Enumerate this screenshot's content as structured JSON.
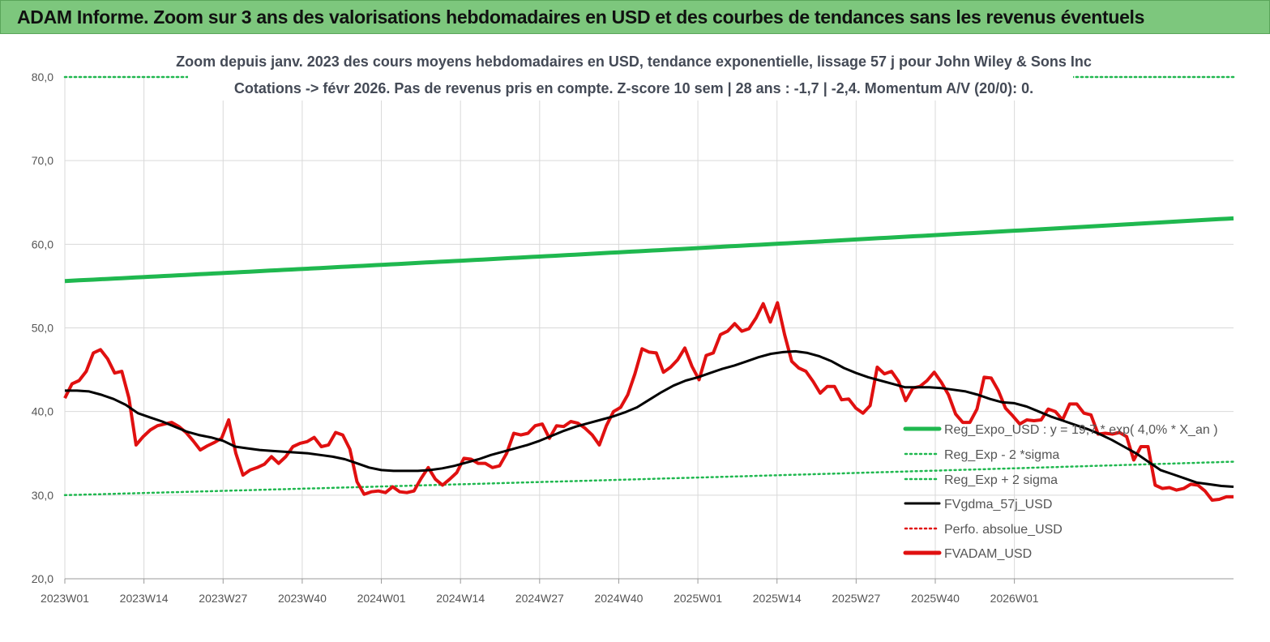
{
  "banner": {
    "title": "ADAM Informe. Zoom sur 3 ans des valorisations hebdomadaires en USD et des courbes de tendances sans les revenus éventuels"
  },
  "chart_data": {
    "type": "line",
    "title_line1": "Zoom depuis janv. 2023 des cours moyens hebdomadaires en USD, tendance exponentielle, lissage 57 j pour John Wiley & Sons Inc",
    "title_line2": "Cotations -> févr 2026.  Pas de revenus pris en compte. Z-score 10 sem | 28 ans : -1,7 | -2,4. Momentum A/V (20/0): 0.",
    "ylim": [
      20,
      80
    ],
    "yticks": [
      "20,0",
      "30,0",
      "40,0",
      "50,0",
      "60,0",
      "70,0",
      "80,0"
    ],
    "xticks": [
      "2023W01",
      "2023W14",
      "2023W27",
      "2023W40",
      "2024W01",
      "2024W14",
      "2024W27",
      "2024W40",
      "2025W01",
      "2025W14",
      "2025W27",
      "2025W40",
      "2026W01"
    ],
    "x_weeks_total": 165,
    "grid": true,
    "legend_position": "right",
    "colors": {
      "reg_expo": "#1fb84f",
      "reg_band": "#1fb84f",
      "fvgdma": "#000000",
      "perfo": "#e01010",
      "fvadam": "#e01010"
    },
    "series": [
      {
        "name": "Reg_Expo_USD : y = 19,7 * exp( 4,0% *  X_an )",
        "style": "thick",
        "color_key": "reg_expo",
        "start": 55.6,
        "end": 63.1
      },
      {
        "name": "Reg_Exp - 2 *sigma",
        "style": "dotted",
        "color_key": "reg_band",
        "start": 30.0,
        "end": 34.0
      },
      {
        "name": "Reg_Exp + 2 sigma",
        "style": "dotted",
        "color_key": "reg_band",
        "constant": 80.0
      },
      {
        "name": "FVgdma_57j_USD",
        "style": "solid",
        "color_key": "fvgdma",
        "points": [
          [
            0,
            42.5
          ],
          [
            2,
            42.5
          ],
          [
            4,
            42.4
          ],
          [
            6,
            42.0
          ],
          [
            8,
            41.5
          ],
          [
            10,
            40.8
          ],
          [
            12,
            39.8
          ],
          [
            14,
            39.3
          ],
          [
            16,
            38.8
          ],
          [
            18,
            38.2
          ],
          [
            20,
            37.6
          ],
          [
            22,
            37.2
          ],
          [
            24,
            36.9
          ],
          [
            26,
            36.5
          ],
          [
            28,
            35.8
          ],
          [
            30,
            35.6
          ],
          [
            32,
            35.4
          ],
          [
            34,
            35.3
          ],
          [
            36,
            35.2
          ],
          [
            38,
            35.1
          ],
          [
            40,
            35.0
          ],
          [
            42,
            34.8
          ],
          [
            44,
            34.6
          ],
          [
            46,
            34.3
          ],
          [
            48,
            33.8
          ],
          [
            50,
            33.3
          ],
          [
            52,
            33.0
          ],
          [
            54,
            32.9
          ],
          [
            56,
            32.9
          ],
          [
            58,
            32.9
          ],
          [
            60,
            33.0
          ],
          [
            62,
            33.2
          ],
          [
            64,
            33.5
          ],
          [
            66,
            33.9
          ],
          [
            68,
            34.3
          ],
          [
            70,
            34.8
          ],
          [
            72,
            35.2
          ],
          [
            74,
            35.6
          ],
          [
            76,
            36.0
          ],
          [
            78,
            36.5
          ],
          [
            80,
            37.1
          ],
          [
            82,
            37.7
          ],
          [
            84,
            38.2
          ],
          [
            86,
            38.6
          ],
          [
            88,
            39.0
          ],
          [
            90,
            39.4
          ],
          [
            92,
            39.9
          ],
          [
            94,
            40.5
          ],
          [
            96,
            41.4
          ],
          [
            98,
            42.3
          ],
          [
            100,
            43.1
          ],
          [
            102,
            43.7
          ],
          [
            104,
            44.1
          ],
          [
            106,
            44.6
          ],
          [
            108,
            45.1
          ],
          [
            110,
            45.5
          ],
          [
            112,
            46.0
          ],
          [
            114,
            46.5
          ],
          [
            116,
            46.9
          ],
          [
            118,
            47.1
          ],
          [
            120,
            47.2
          ],
          [
            122,
            47.0
          ],
          [
            124,
            46.6
          ],
          [
            126,
            46.0
          ],
          [
            128,
            45.2
          ],
          [
            130,
            44.6
          ],
          [
            132,
            44.1
          ],
          [
            134,
            43.7
          ],
          [
            136,
            43.3
          ],
          [
            138,
            42.9
          ],
          [
            140,
            42.9
          ],
          [
            142,
            42.9
          ],
          [
            144,
            42.8
          ],
          [
            146,
            42.6
          ],
          [
            148,
            42.4
          ],
          [
            150,
            42.0
          ],
          [
            152,
            41.5
          ],
          [
            154,
            41.1
          ],
          [
            156,
            41.0
          ],
          [
            158,
            40.6
          ],
          [
            160,
            40.0
          ],
          [
            162,
            39.4
          ],
          [
            164,
            38.9
          ],
          [
            166,
            38.4
          ],
          [
            168,
            37.9
          ],
          [
            170,
            37.3
          ],
          [
            172,
            36.6
          ],
          [
            174,
            35.8
          ],
          [
            176,
            35.0
          ],
          [
            178,
            34.0
          ],
          [
            180,
            33.0
          ],
          [
            182,
            32.5
          ],
          [
            184,
            32.0
          ],
          [
            186,
            31.5
          ],
          [
            188,
            31.3
          ],
          [
            190,
            31.1
          ],
          [
            192,
            31.0
          ]
        ]
      },
      {
        "name": "Perfo. absolue_USD",
        "style": "dotted",
        "color_key": "perfo",
        "legend_only": true
      },
      {
        "name": "FVADAM_USD",
        "style": "thick",
        "color_key": "fvadam",
        "points": [
          [
            0,
            41.6
          ],
          [
            1,
            43.3
          ],
          [
            2,
            43.7
          ],
          [
            3,
            44.8
          ],
          [
            4,
            47.0
          ],
          [
            5,
            47.4
          ],
          [
            6,
            46.3
          ],
          [
            7,
            44.6
          ],
          [
            8,
            44.8
          ],
          [
            9,
            41.6
          ],
          [
            10,
            36.0
          ],
          [
            11,
            37.0
          ],
          [
            12,
            37.8
          ],
          [
            13,
            38.3
          ],
          [
            14,
            38.5
          ],
          [
            15,
            38.7
          ],
          [
            16,
            38.2
          ],
          [
            17,
            37.5
          ],
          [
            18,
            36.5
          ],
          [
            19,
            35.4
          ],
          [
            20,
            35.9
          ],
          [
            21,
            36.3
          ],
          [
            22,
            36.8
          ],
          [
            23,
            39.0
          ],
          [
            24,
            35.0
          ],
          [
            25,
            32.4
          ],
          [
            26,
            33.0
          ],
          [
            27,
            33.3
          ],
          [
            28,
            33.7
          ],
          [
            29,
            34.6
          ],
          [
            30,
            33.8
          ],
          [
            31,
            34.6
          ],
          [
            32,
            35.8
          ],
          [
            33,
            36.2
          ],
          [
            34,
            36.4
          ],
          [
            35,
            36.9
          ],
          [
            36,
            35.8
          ],
          [
            37,
            36.0
          ],
          [
            38,
            37.5
          ],
          [
            39,
            37.2
          ],
          [
            40,
            35.5
          ],
          [
            41,
            31.6
          ],
          [
            42,
            30.1
          ],
          [
            43,
            30.4
          ],
          [
            44,
            30.5
          ],
          [
            45,
            30.3
          ],
          [
            46,
            31.0
          ],
          [
            47,
            30.4
          ],
          [
            48,
            30.3
          ],
          [
            49,
            30.5
          ],
          [
            50,
            32.0
          ],
          [
            51,
            33.3
          ],
          [
            52,
            31.9
          ],
          [
            53,
            31.2
          ],
          [
            54,
            31.9
          ],
          [
            55,
            32.7
          ],
          [
            56,
            34.4
          ],
          [
            57,
            34.3
          ],
          [
            58,
            33.8
          ],
          [
            59,
            33.8
          ],
          [
            60,
            33.3
          ],
          [
            61,
            33.5
          ],
          [
            62,
            35.0
          ],
          [
            63,
            37.4
          ],
          [
            64,
            37.2
          ],
          [
            65,
            37.4
          ],
          [
            66,
            38.3
          ],
          [
            67,
            38.5
          ],
          [
            68,
            36.8
          ],
          [
            69,
            38.3
          ],
          [
            70,
            38.2
          ],
          [
            71,
            38.8
          ],
          [
            72,
            38.6
          ],
          [
            73,
            38.0
          ],
          [
            74,
            37.2
          ],
          [
            75,
            36.0
          ],
          [
            76,
            38.3
          ],
          [
            77,
            40.0
          ],
          [
            78,
            40.5
          ],
          [
            79,
            42.0
          ],
          [
            80,
            44.5
          ],
          [
            81,
            47.5
          ],
          [
            82,
            47.1
          ],
          [
            83,
            47.0
          ],
          [
            84,
            44.7
          ],
          [
            85,
            45.3
          ],
          [
            86,
            46.2
          ],
          [
            87,
            47.6
          ],
          [
            88,
            45.4
          ],
          [
            89,
            43.8
          ],
          [
            90,
            46.7
          ],
          [
            91,
            47.0
          ],
          [
            92,
            49.2
          ],
          [
            93,
            49.6
          ],
          [
            94,
            50.5
          ],
          [
            95,
            49.6
          ],
          [
            96,
            49.9
          ],
          [
            97,
            51.2
          ],
          [
            98,
            52.9
          ],
          [
            99,
            50.7
          ],
          [
            100,
            53.0
          ],
          [
            101,
            49.2
          ],
          [
            102,
            46.0
          ],
          [
            103,
            45.2
          ],
          [
            104,
            44.8
          ],
          [
            105,
            43.6
          ],
          [
            106,
            42.2
          ],
          [
            107,
            43.0
          ],
          [
            108,
            43.0
          ],
          [
            109,
            41.4
          ],
          [
            110,
            41.5
          ],
          [
            111,
            40.4
          ],
          [
            112,
            39.8
          ],
          [
            113,
            40.7
          ],
          [
            114,
            45.3
          ],
          [
            115,
            44.5
          ],
          [
            116,
            44.8
          ],
          [
            117,
            43.6
          ],
          [
            118,
            41.3
          ],
          [
            119,
            42.8
          ],
          [
            120,
            43.0
          ],
          [
            121,
            43.7
          ],
          [
            122,
            44.7
          ],
          [
            123,
            43.5
          ],
          [
            124,
            42.0
          ],
          [
            125,
            39.7
          ],
          [
            126,
            38.7
          ],
          [
            127,
            38.7
          ],
          [
            128,
            40.3
          ],
          [
            129,
            44.1
          ],
          [
            130,
            44.0
          ],
          [
            131,
            42.5
          ],
          [
            132,
            40.4
          ],
          [
            133,
            39.5
          ],
          [
            134,
            38.5
          ],
          [
            135,
            39.0
          ],
          [
            136,
            38.9
          ],
          [
            137,
            39.0
          ],
          [
            138,
            40.3
          ],
          [
            139,
            40.0
          ],
          [
            140,
            39.0
          ],
          [
            141,
            40.9
          ],
          [
            142,
            40.9
          ],
          [
            143,
            39.8
          ],
          [
            144,
            39.6
          ],
          [
            145,
            37.3
          ],
          [
            146,
            37.4
          ],
          [
            147,
            37.3
          ],
          [
            148,
            37.5
          ],
          [
            149,
            37.0
          ],
          [
            150,
            34.2
          ],
          [
            151,
            35.8
          ],
          [
            152,
            35.8
          ],
          [
            153,
            31.2
          ],
          [
            154,
            30.8
          ],
          [
            155,
            30.9
          ],
          [
            156,
            30.6
          ],
          [
            157,
            30.8
          ],
          [
            158,
            31.3
          ],
          [
            159,
            31.2
          ],
          [
            160,
            30.5
          ],
          [
            161,
            29.4
          ],
          [
            162,
            29.5
          ],
          [
            163,
            29.8
          ],
          [
            164,
            29.8
          ]
        ]
      }
    ]
  }
}
